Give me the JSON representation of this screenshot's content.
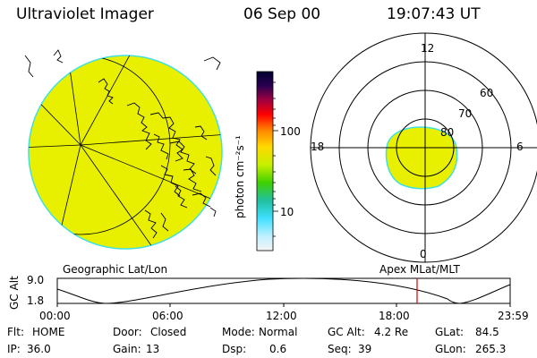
{
  "header": {
    "title": "Ultraviolet Imager",
    "date": "06 Sep 00",
    "time": "19:07:43 UT"
  },
  "colorbar": {
    "unit_label": "photon cm⁻²s⁻¹",
    "ticks": [
      "100",
      "10"
    ]
  },
  "polar_plot": {
    "mlt_labels": {
      "top": "12",
      "left": "18",
      "right": "6",
      "bottom": "0"
    },
    "lat_labels": [
      "60",
      "70",
      "80"
    ]
  },
  "panel_labels": {
    "geographic": "Geographic Lat/Lon",
    "apex": "Apex MLat/MLT"
  },
  "altitude_plot": {
    "ylabel": "GC Alt",
    "y_ticks": [
      "9.0",
      "1.8"
    ],
    "x_ticks": [
      "00:00",
      "06:00",
      "12:00",
      "18:00",
      "23:59"
    ],
    "current_time_marker": "19:07"
  },
  "status": {
    "flt": {
      "label": "Flt:",
      "value": "HOME"
    },
    "ip": {
      "label": "IP:",
      "value": "36.0"
    },
    "door": {
      "label": "Door:",
      "value": "Closed"
    },
    "gain": {
      "label": "Gain:",
      "value": "13"
    },
    "mode": {
      "label": "Mode:",
      "value": "Normal"
    },
    "dsp": {
      "label": "Dsp:",
      "value": "0.6"
    },
    "gcalt": {
      "label": "GC Alt:",
      "value": "4.2 Re"
    },
    "seq": {
      "label": "Seq:",
      "value": "39"
    },
    "glat": {
      "label": "GLat:",
      "value": "84.5"
    },
    "glon": {
      "label": "GLon:",
      "value": "265.3"
    }
  },
  "colors": {
    "fill": "#e8f000",
    "cyan": "#40e0e0",
    "marker": "#e00000"
  }
}
